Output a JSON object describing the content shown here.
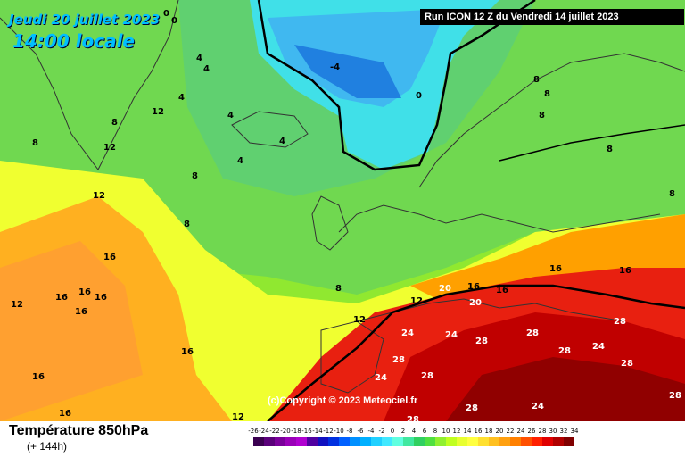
{
  "header": {
    "date_line": "Jeudi 20 juillet 2023",
    "time_line": "14:00 locale",
    "run_info": "Run ICON 12 Z du Vendredi 14 juillet 2023"
  },
  "footer": {
    "title": "Température 850hPa",
    "subtitle": "(+ 144h)",
    "copyright": "(c)Copyright © 2023 Meteociel.fr"
  },
  "legend": {
    "labels": [
      "-26",
      "-24",
      "-22",
      "-20",
      "-18",
      "-16",
      "-14",
      "-12",
      "-10",
      "-8",
      "-6",
      "-4",
      "-2",
      "0",
      "2",
      "4",
      "6",
      "8",
      "10",
      "12",
      "14",
      "16",
      "18",
      "20",
      "22",
      "24",
      "26",
      "28",
      "30",
      "32",
      "34"
    ],
    "colors": [
      "#3a0050",
      "#5a007a",
      "#7a009a",
      "#9a00b8",
      "#b000d0",
      "#5000a0",
      "#1010c0",
      "#0030e0",
      "#0060ff",
      "#0090ff",
      "#00b0ff",
      "#20d0ff",
      "#40e8ff",
      "#60ffe0",
      "#40e8a0",
      "#30d060",
      "#50e040",
      "#90f030",
      "#c0ff20",
      "#e8ff30",
      "#ffff40",
      "#ffe030",
      "#ffc020",
      "#ffa010",
      "#ff8000",
      "#ff5000",
      "#ff2000",
      "#e00000",
      "#b00000",
      "#800000"
    ]
  },
  "map_labels": [
    {
      "t": "0"
    },
    {
      "t": "0"
    },
    {
      "t": "-4"
    },
    {
      "t": "0"
    },
    {
      "t": "4"
    },
    {
      "t": "4"
    },
    {
      "t": "4"
    },
    {
      "t": "4"
    },
    {
      "t": "4"
    },
    {
      "t": "4"
    },
    {
      "t": "8"
    },
    {
      "t": "8"
    },
    {
      "t": "8"
    },
    {
      "t": "8"
    },
    {
      "t": "8"
    },
    {
      "t": "12"
    },
    {
      "t": "12"
    },
    {
      "t": "12"
    },
    {
      "t": "12"
    },
    {
      "t": "12"
    },
    {
      "t": "16"
    },
    {
      "t": "16"
    },
    {
      "t": "16"
    },
    {
      "t": "16"
    },
    {
      "t": "16"
    },
    {
      "t": "16"
    },
    {
      "t": "16"
    },
    {
      "t": "16"
    },
    {
      "t": "16"
    },
    {
      "t": "16"
    },
    {
      "t": "20"
    },
    {
      "t": "20"
    },
    {
      "t": "24"
    },
    {
      "t": "24"
    },
    {
      "t": "24"
    },
    {
      "t": "24"
    },
    {
      "t": "24"
    },
    {
      "t": "28"
    },
    {
      "t": "28"
    },
    {
      "t": "28"
    },
    {
      "t": "28"
    },
    {
      "t": "28"
    },
    {
      "t": "28"
    },
    {
      "t": "28"
    },
    {
      "t": "28"
    },
    {
      "t": "28"
    },
    {
      "t": "28"
    },
    {
      "t": "8"
    },
    {
      "t": "8"
    },
    {
      "t": "8"
    },
    {
      "t": "8"
    },
    {
      "t": "8"
    },
    {
      "t": "12"
    },
    {
      "t": "12"
    },
    {
      "t": "16"
    },
    {
      "t": "16"
    }
  ]
}
